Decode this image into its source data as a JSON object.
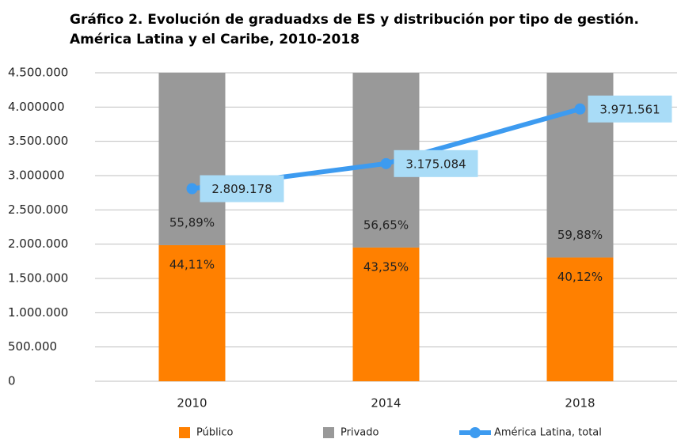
{
  "chart_data": {
    "type": "bar",
    "title": "Gráfico 2. Evolución de graduadxs de ES y distribución por tipo de gestión.",
    "subtitle": "América Latina y el Caribe, 2010-2018",
    "categories": [
      "2010",
      "2014",
      "2018"
    ],
    "stacked": true,
    "series": [
      {
        "name": "Público",
        "type": "bar",
        "axis": "y2",
        "color": "#ff8000",
        "values": [
          44.11,
          43.35,
          40.12
        ],
        "value_labels": [
          "44,11%",
          "43,35%",
          "40,12%"
        ]
      },
      {
        "name": "Privado",
        "type": "bar",
        "axis": "y2",
        "color": "#999999",
        "values": [
          55.89,
          56.65,
          59.88
        ],
        "value_labels": [
          "55,89%",
          "56,65%",
          "59,88%"
        ]
      },
      {
        "name": "América Latina, total",
        "type": "line",
        "color": "#3d9bf0",
        "values": [
          2809178,
          3175084,
          3971561
        ],
        "value_labels": [
          "2.809.178",
          "3.175.084",
          "3.971.561"
        ]
      }
    ],
    "ylim": [
      0,
      4500000
    ],
    "yticks": [
      0,
      {
        "value": 500000,
        "label": "500.000"
      },
      {
        "value": 1000000,
        "label": "1.000.000"
      },
      {
        "value": 1500000,
        "label": "1.500.000"
      },
      {
        "value": 2000000,
        "label": "2.000.000"
      },
      {
        "value": 2500000,
        "label": "2.500.000"
      },
      {
        "value": 3000000,
        "label": "3.000000"
      },
      {
        "value": 3500000,
        "label": "3.500.000"
      },
      {
        "value": 4000000,
        "label": "4.000000"
      },
      {
        "value": 4500000,
        "label": "4.500.000"
      }
    ],
    "y2lim": [
      0,
      100
    ],
    "grid": true,
    "legend": "bottom"
  }
}
